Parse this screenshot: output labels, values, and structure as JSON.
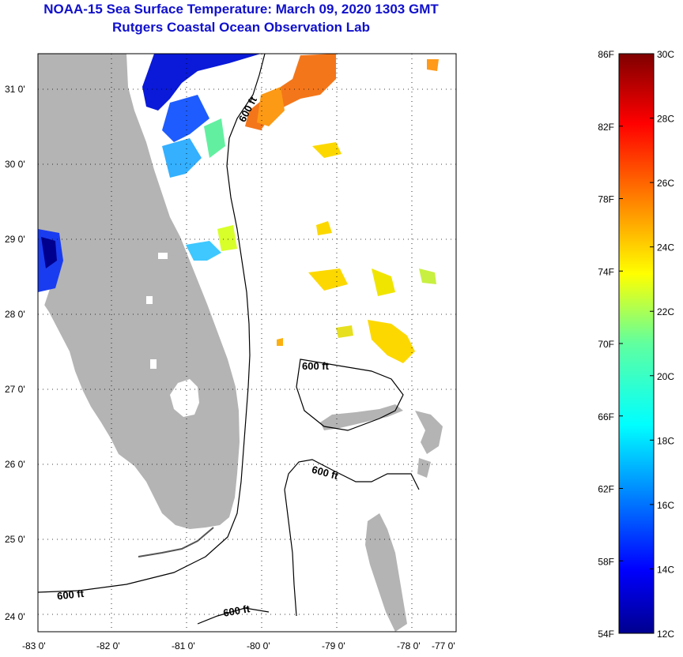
{
  "title": {
    "line1": "NOAA-15 Sea Surface Temperature:  March 09, 2020 1303 GMT",
    "line2": "Rutgers Coastal Ocean Observation Lab"
  },
  "map": {
    "x_ticks": [
      "-83 0'",
      "-82 0'",
      "-81 0'",
      "-80 0'",
      "-79 0'",
      "-78 0'",
      "-77 0'"
    ],
    "y_ticks": [
      "31 0'",
      "30 0'",
      "29 0'",
      "28 0'",
      "27 0'",
      "26 0'",
      "25 0'",
      "24 0'"
    ],
    "contour_labels": [
      "600 ft",
      "600 ft",
      "600 ft",
      "600 ft",
      "600 ft"
    ],
    "colors": {
      "land": "#b4b4b4",
      "contour": "#000000",
      "grid": "#000000"
    }
  },
  "colorbar": {
    "fahrenheit": [
      "86F",
      "82F",
      "78F",
      "74F",
      "70F",
      "66F",
      "62F",
      "58F",
      "54F"
    ],
    "celsius": [
      "30C",
      "28C",
      "26C",
      "24C",
      "22C",
      "20C",
      "18C",
      "16C",
      "14C",
      "12C"
    ],
    "range_c": [
      12,
      30
    ]
  }
}
